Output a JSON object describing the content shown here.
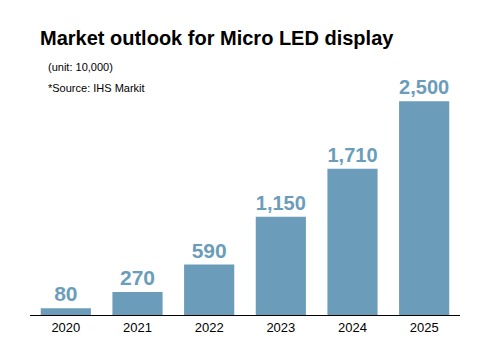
{
  "chart_data": {
    "type": "bar",
    "title": "Market outlook for Micro LED display",
    "annotations": [
      "(unit: 10,000)",
      "*Source: IHS Markit"
    ],
    "categories": [
      "2020",
      "2021",
      "2022",
      "2023",
      "2024",
      "2025"
    ],
    "values": [
      80,
      270,
      590,
      1150,
      1710,
      2500
    ],
    "value_labels": [
      "80",
      "270",
      "590",
      "1,150",
      "1,710",
      "2,500"
    ],
    "color": "#6b9dba",
    "data_labels": true,
    "tick_labels": "x",
    "grid": false
  }
}
